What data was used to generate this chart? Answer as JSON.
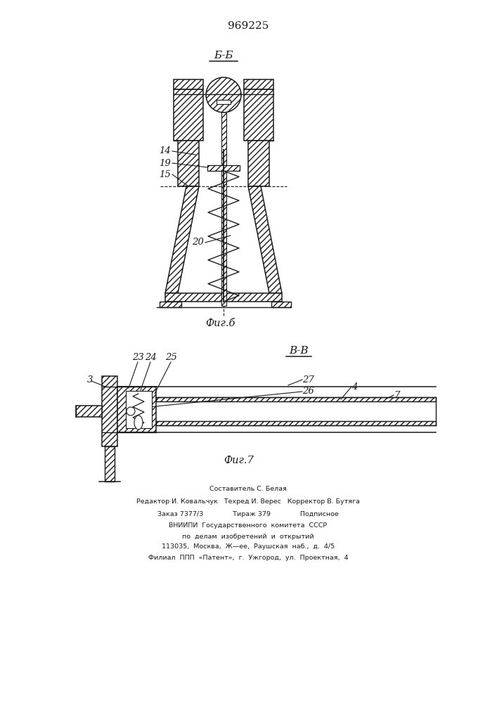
{
  "patent_number": "969225",
  "bg_color": "#ffffff",
  "line_color": "#1a1a1a",
  "fig6_label": "Б-Б",
  "fig6_caption": "Фиг.б",
  "fig7_label": "В-В",
  "fig7_caption": "Фиг.7",
  "footer_lines": [
    "Составитель С. Белая",
    "Редактор И. Ковальчук   Техред И. Верес   Корректор В. Бутяга",
    "Заказ 7377/3              Тираж 379              Подписное",
    "ВНИИПИ  Государственного  комитета  СССР",
    "по  делам  изобретений  и  открытий",
    "113035,  Москва,  Ж—ее,  Раушская  наб.,  д.  4/5",
    "Филиал  ППП  «Патент»,  г.  Ужгород,  ул.  Проектная,  4"
  ]
}
